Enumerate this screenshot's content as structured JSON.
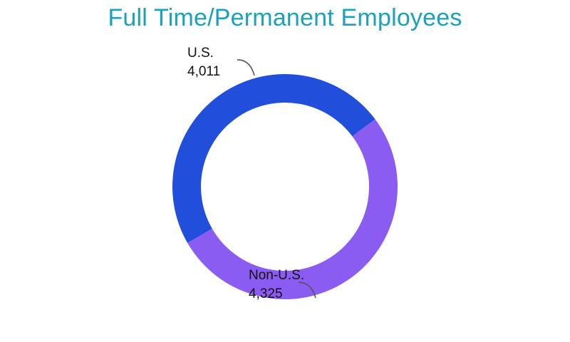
{
  "chart_data": {
    "type": "pie",
    "variant": "donut",
    "title": "Full Time/Permanent Employees",
    "categories": [
      "U.S.",
      "Non-U.S."
    ],
    "values": [
      4011,
      4325
    ],
    "value_labels": [
      "4,011",
      "4,325"
    ],
    "colors": [
      "#214fdc",
      "#8b5cf2"
    ],
    "legend": "none",
    "labels_placement": "outside-with-leader-lines"
  }
}
